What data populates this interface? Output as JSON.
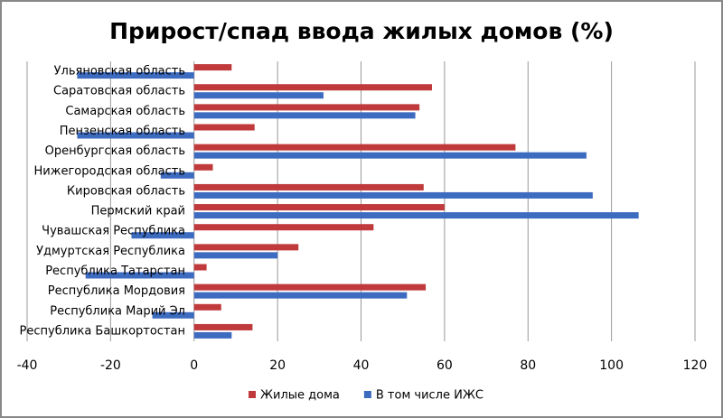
{
  "chart_data": {
    "type": "hbar",
    "title": "Прирост/спад ввода жилых домов (%)",
    "categories": [
      "Ульяновская область",
      "Саратовская область",
      "Самарская область",
      "Пензенская область",
      "Оренбургская область",
      "Нижегородская область",
      "Кировская область",
      "Пермский край",
      "Чувашская Республика",
      "Удмуртская Республика",
      "Республика Татарстан",
      "Республика Мордовия",
      "Республика  Марий Эл",
      "Республика Башкортостан"
    ],
    "series": [
      {
        "name": "Жилые дома",
        "color": "#c0393b",
        "values": [
          9,
          57,
          54,
          14.5,
          77,
          4.5,
          55,
          60,
          43,
          25,
          3,
          55.5,
          6.5,
          14
        ]
      },
      {
        "name": "В том числе ИЖС",
        "color": "#3d6bc0",
        "values": [
          -28,
          31,
          53,
          -28,
          94,
          -8,
          95.5,
          106.5,
          -15,
          20,
          -26,
          51,
          -10,
          9
        ]
      }
    ],
    "xlim": [
      -40,
      120
    ],
    "xticks": [
      -40,
      -20,
      0,
      20,
      40,
      60,
      80,
      100,
      120
    ],
    "grid": true,
    "legend": "bottom"
  }
}
